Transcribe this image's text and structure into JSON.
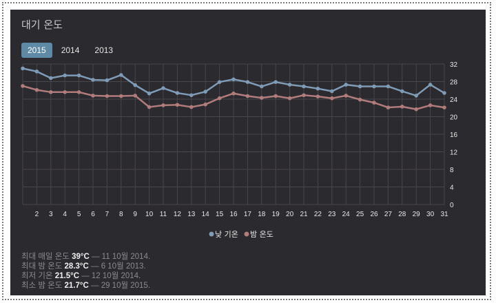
{
  "title": "대기 온도",
  "tabs": [
    {
      "label": "2015",
      "active": true
    },
    {
      "label": "2014",
      "active": false
    },
    {
      "label": "2013",
      "active": false
    }
  ],
  "chart_data": {
    "type": "line",
    "x": [
      1,
      2,
      3,
      4,
      5,
      6,
      7,
      8,
      9,
      10,
      11,
      12,
      13,
      14,
      15,
      16,
      17,
      18,
      19,
      20,
      21,
      22,
      23,
      24,
      25,
      26,
      27,
      28,
      29,
      30,
      31
    ],
    "x_tick_labels": [
      "2",
      "3",
      "4",
      "5",
      "6",
      "7",
      "8",
      "9",
      "10",
      "11",
      "12",
      "13",
      "14",
      "15",
      "16",
      "17",
      "18",
      "19",
      "20",
      "21",
      "22",
      "23",
      "24",
      "25",
      "26",
      "27",
      "28",
      "29",
      "30",
      "31"
    ],
    "ylim": [
      0,
      32
    ],
    "y_ticks": [
      0,
      4,
      8,
      12,
      16,
      20,
      24,
      28,
      32
    ],
    "y_axis_side": "right",
    "grid": true,
    "legend": "bottom-center",
    "series": [
      {
        "name": "낮 기온",
        "color": "#7f9bb5",
        "values": [
          31.0,
          30.3,
          28.8,
          29.4,
          29.4,
          28.4,
          28.3,
          29.5,
          27.2,
          25.3,
          26.5,
          25.4,
          24.9,
          25.7,
          27.9,
          28.5,
          27.9,
          26.9,
          27.9,
          27.3,
          26.9,
          26.4,
          25.8,
          27.3,
          26.9,
          26.9,
          26.9,
          25.8,
          24.8,
          27.3,
          25.4
        ]
      },
      {
        "name": "밤 온도",
        "color": "#b07c7c",
        "values": [
          27.0,
          26.1,
          25.6,
          25.6,
          25.6,
          24.8,
          24.7,
          24.7,
          24.8,
          22.2,
          22.6,
          22.7,
          22.2,
          22.8,
          24.2,
          25.3,
          24.7,
          24.3,
          24.7,
          24.2,
          24.9,
          24.6,
          24.2,
          24.8,
          23.9,
          23.2,
          22.1,
          22.3,
          21.7,
          22.6,
          22.1
        ]
      }
    ]
  },
  "stats": [
    {
      "label": "최대 매일 온도",
      "value": "39°C",
      "detail": "— 11 10월 2014."
    },
    {
      "label": "최대 밤 온도",
      "value": "28.3°C",
      "detail": "— 6 10월 2013."
    },
    {
      "label": "최저 기온",
      "value": "21.5°C",
      "detail": "— 12 10월 2014."
    },
    {
      "label": "최소 밤 온도",
      "value": "21.7°C",
      "detail": "— 29 10월 2015."
    }
  ]
}
